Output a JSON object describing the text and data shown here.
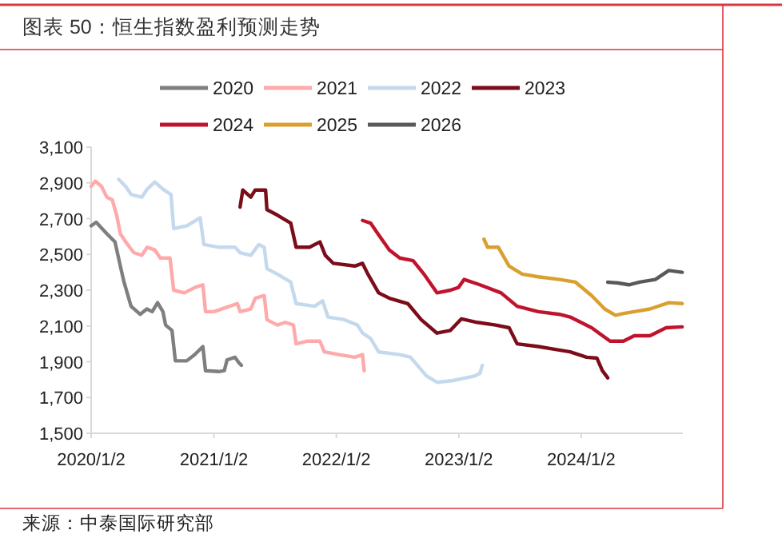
{
  "chart_data": {
    "type": "line",
    "title": "图表 50：恒生指数盈利预测走势",
    "annotations": [
      "来源：中泰国际研究部"
    ],
    "legend": "top",
    "xlim": [
      "2020-01-02",
      "2024-10-31"
    ],
    "xticks": [
      {
        "value": "2020-01-02",
        "label": "2020/1/2"
      },
      {
        "value": "2021-01-02",
        "label": "2021/1/2"
      },
      {
        "value": "2022-01-02",
        "label": "2022/1/2"
      },
      {
        "value": "2023-01-02",
        "label": "2023/1/2"
      },
      {
        "value": "2024-01-02",
        "label": "2024/1/2"
      }
    ],
    "ylim": [
      1500,
      3100
    ],
    "yticks": [
      {
        "value": 1500,
        "label": "1,500"
      },
      {
        "value": 1700,
        "label": "1,700"
      },
      {
        "value": 1900,
        "label": "1,900"
      },
      {
        "value": 2100,
        "label": "2,100"
      },
      {
        "value": 2300,
        "label": "2,300"
      },
      {
        "value": 2500,
        "label": "2,500"
      },
      {
        "value": 2700,
        "label": "2,700"
      },
      {
        "value": 2900,
        "label": "2,900"
      },
      {
        "value": 3100,
        "label": "3,100"
      }
    ],
    "series": [
      {
        "name": "2020",
        "color": "#7f7f7f",
        "x": [
          "2020-01-02",
          "2020-01-17",
          "2020-02-18",
          "2020-03-13",
          "2020-03-29",
          "2020-04-09",
          "2020-04-30",
          "2020-05-27",
          "2020-06-16",
          "2020-07-02",
          "2020-07-18",
          "2020-08-03",
          "2020-08-11",
          "2020-08-30",
          "2020-09-09",
          "2020-10-13",
          "2020-11-06",
          "2020-11-30",
          "2020-12-08",
          "2021-01-17",
          "2021-02-02",
          "2021-02-10",
          "2021-03-06",
          "2021-03-17",
          "2021-03-25"
        ],
        "values": [
          2660,
          2680,
          2615,
          2570,
          2435,
          2345,
          2210,
          2165,
          2195,
          2180,
          2230,
          2180,
          2105,
          2075,
          1905,
          1905,
          1940,
          1985,
          1850,
          1845,
          1850,
          1910,
          1925,
          1895,
          1880
        ]
      },
      {
        "name": "2021",
        "color": "#ffaaaa",
        "x": [
          "2020-01-02",
          "2020-01-14",
          "2020-02-02",
          "2020-02-18",
          "2020-03-05",
          "2020-03-18",
          "2020-03-29",
          "2020-04-14",
          "2020-05-08",
          "2020-06-01",
          "2020-06-17",
          "2020-07-10",
          "2020-07-26",
          "2020-08-24",
          "2020-09-04",
          "2020-10-06",
          "2020-11-06",
          "2020-11-30",
          "2020-12-08",
          "2021-01-02",
          "2021-02-18",
          "2021-03-13",
          "2021-03-21",
          "2021-04-22",
          "2021-05-05",
          "2021-06-01",
          "2021-06-09",
          "2021-07-10",
          "2021-08-03",
          "2021-08-27",
          "2021-09-04",
          "2021-10-06",
          "2021-11-14",
          "2021-11-27",
          "2022-01-10",
          "2022-02-26",
          "2022-03-21",
          "2022-03-26"
        ],
        "values": [
          2880,
          2910,
          2880,
          2820,
          2805,
          2720,
          2615,
          2570,
          2510,
          2495,
          2540,
          2525,
          2480,
          2480,
          2300,
          2285,
          2315,
          2330,
          2180,
          2180,
          2210,
          2225,
          2180,
          2195,
          2255,
          2270,
          2135,
          2105,
          2120,
          2105,
          2000,
          2015,
          2015,
          1955,
          1940,
          1925,
          1940,
          1850
        ]
      },
      {
        "name": "2022",
        "color": "#c5d9ee",
        "x": [
          "2020-03-24",
          "2020-04-14",
          "2020-04-30",
          "2020-06-01",
          "2020-06-17",
          "2020-07-10",
          "2020-08-03",
          "2020-08-27",
          "2020-09-04",
          "2020-10-14",
          "2020-11-22",
          "2020-12-03",
          "2021-01-18",
          "2021-03-06",
          "2021-03-21",
          "2021-04-22",
          "2021-05-16",
          "2021-06-01",
          "2021-06-09",
          "2021-07-10",
          "2021-08-19",
          "2021-09-04",
          "2021-10-29",
          "2021-11-22",
          "2021-12-08",
          "2022-01-26",
          "2022-03-06",
          "2022-03-21",
          "2022-04-14",
          "2022-05-08",
          "2022-07-10",
          "2022-08-11",
          "2022-09-28",
          "2022-10-29",
          "2022-12-16",
          "2023-02-18",
          "2023-03-06",
          "2023-03-13"
        ],
        "values": [
          2920,
          2880,
          2835,
          2820,
          2865,
          2905,
          2865,
          2835,
          2645,
          2660,
          2705,
          2555,
          2540,
          2540,
          2510,
          2495,
          2555,
          2540,
          2420,
          2390,
          2345,
          2225,
          2210,
          2240,
          2150,
          2135,
          2105,
          2060,
          2030,
          1955,
          1940,
          1925,
          1820,
          1785,
          1795,
          1820,
          1835,
          1880
        ]
      },
      {
        "name": "2023",
        "color": "#7b0c1a",
        "x": [
          "2021-03-21",
          "2021-03-29",
          "2021-04-22",
          "2021-05-05",
          "2021-06-05",
          "2021-06-09",
          "2021-07-10",
          "2021-08-19",
          "2021-09-04",
          "2021-10-14",
          "2021-11-14",
          "2021-11-30",
          "2021-12-24",
          "2022-02-26",
          "2022-03-21",
          "2022-04-06",
          "2022-05-08",
          "2022-06-09",
          "2022-08-03",
          "2022-09-12",
          "2022-10-29",
          "2022-12-08",
          "2023-01-10",
          "2023-02-26",
          "2023-04-22",
          "2023-06-01",
          "2023-06-25",
          "2023-08-27",
          "2023-10-14",
          "2023-11-30",
          "2024-01-18",
          "2024-02-18",
          "2024-03-05",
          "2024-03-21"
        ],
        "values": [
          2765,
          2860,
          2820,
          2860,
          2860,
          2750,
          2720,
          2675,
          2540,
          2540,
          2570,
          2495,
          2450,
          2435,
          2450,
          2390,
          2285,
          2255,
          2225,
          2135,
          2060,
          2075,
          2140,
          2120,
          2105,
          2090,
          2000,
          1985,
          1970,
          1955,
          1925,
          1920,
          1850,
          1810
        ]
      },
      {
        "name": "2024",
        "color": "#c0142d",
        "x": [
          "2022-03-21",
          "2022-04-14",
          "2022-05-08",
          "2022-06-09",
          "2022-07-10",
          "2022-08-19",
          "2022-09-20",
          "2022-10-29",
          "2022-12-08",
          "2023-01-01",
          "2023-01-18",
          "2023-03-06",
          "2023-05-08",
          "2023-06-25",
          "2023-08-27",
          "2023-10-29",
          "2023-11-30",
          "2024-02-02",
          "2024-03-28",
          "2024-05-07",
          "2024-06-08",
          "2024-07-25",
          "2024-09-11",
          "2024-10-29"
        ],
        "values": [
          2690,
          2675,
          2610,
          2525,
          2480,
          2465,
          2390,
          2285,
          2300,
          2315,
          2360,
          2330,
          2285,
          2210,
          2180,
          2165,
          2150,
          2090,
          2015,
          2015,
          2045,
          2045,
          2090,
          2095
        ]
      },
      {
        "name": "2025",
        "color": "#d9a030",
        "x": [
          "2023-03-18",
          "2023-03-29",
          "2023-04-30",
          "2023-06-01",
          "2023-07-10",
          "2023-08-27",
          "2023-10-29",
          "2023-12-16",
          "2024-02-02",
          "2024-03-12",
          "2024-04-13",
          "2024-05-07",
          "2024-06-08",
          "2024-07-25",
          "2024-09-19",
          "2024-10-29"
        ],
        "values": [
          2585,
          2540,
          2540,
          2435,
          2390,
          2375,
          2360,
          2345,
          2270,
          2195,
          2160,
          2170,
          2180,
          2195,
          2230,
          2225
        ]
      },
      {
        "name": "2026",
        "color": "#595959",
        "x": [
          "2024-03-21",
          "2024-04-21",
          "2024-05-23",
          "2024-06-24",
          "2024-08-10",
          "2024-09-19",
          "2024-10-29"
        ],
        "values": [
          2345,
          2340,
          2330,
          2345,
          2360,
          2410,
          2400
        ]
      }
    ]
  }
}
